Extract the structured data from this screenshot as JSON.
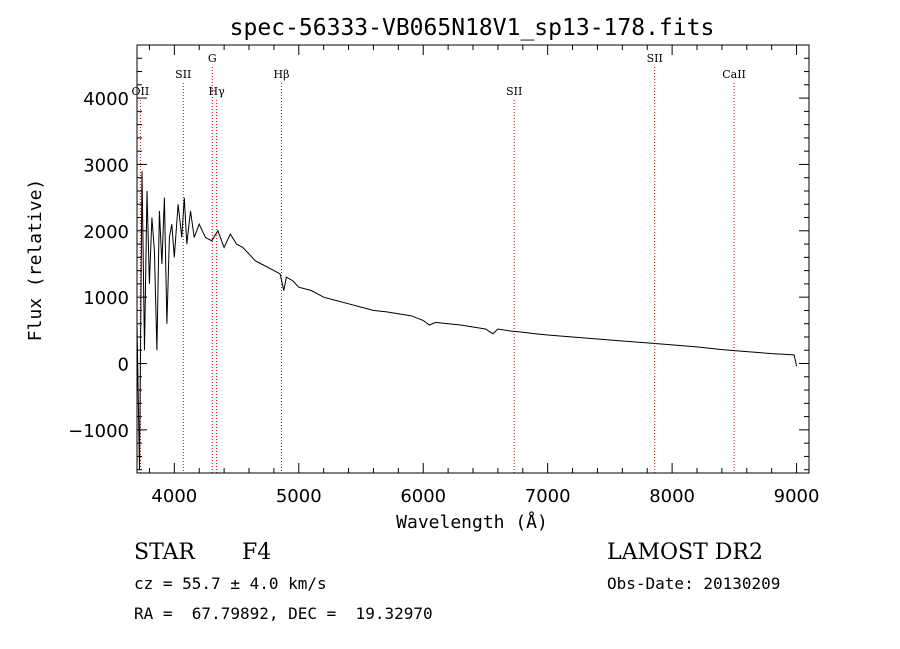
{
  "chart_data": {
    "type": "line",
    "title": "spec-56333-VB065N18V1_sp13-178.fits",
    "xlabel": "Wavelength (Å)",
    "ylabel": "Flux (relative)",
    "xlim": [
      3700,
      9100
    ],
    "ylim": [
      -1650,
      4800
    ],
    "xticks": [
      4000,
      5000,
      6000,
      7000,
      8000,
      9000
    ],
    "xtick_labels": [
      "4000",
      "5000",
      "6000",
      "7000",
      "8000",
      "9000"
    ],
    "yticks": [
      -1000,
      0,
      1000,
      2000,
      3000,
      4000
    ],
    "ytick_labels": [
      "−1000",
      "0",
      "1000",
      "2000",
      "3000",
      "4000"
    ],
    "grid": false,
    "line_color": "#000000",
    "marker_color": "#cc0000",
    "series": [
      {
        "x": [
          3700,
          3720,
          3740,
          3760,
          3780,
          3800,
          3820,
          3840,
          3860,
          3880,
          3900,
          3920,
          3940,
          3960,
          3980,
          4000,
          4030,
          4060,
          4080,
          4100,
          4130,
          4160,
          4200,
          4250,
          4300,
          4350,
          4400,
          4450,
          4500,
          4550,
          4600,
          4650,
          4700,
          4750,
          4800,
          4850,
          4880,
          4900,
          4950,
          5000,
          5100,
          5200,
          5300,
          5400,
          5500,
          5600,
          5700,
          5800,
          5900,
          6000,
          6050,
          6100,
          6200,
          6300,
          6400,
          6500,
          6560,
          6600,
          6700,
          6800,
          6900,
          7000,
          7200,
          7400,
          7600,
          7800,
          8000,
          8200,
          8400,
          8600,
          8800,
          8980,
          9000
        ],
        "y": [
          600,
          -1600,
          2900,
          200,
          2600,
          1200,
          2200,
          1700,
          200,
          2300,
          1500,
          2500,
          600,
          1900,
          2100,
          1600,
          2400,
          1900,
          2500,
          1800,
          2300,
          1900,
          2100,
          1900,
          1850,
          2000,
          1750,
          1950,
          1800,
          1750,
          1650,
          1550,
          1500,
          1450,
          1400,
          1350,
          1100,
          1300,
          1250,
          1150,
          1100,
          1000,
          950,
          900,
          850,
          800,
          780,
          750,
          720,
          650,
          580,
          620,
          600,
          580,
          550,
          520,
          450,
          520,
          490,
          470,
          450,
          430,
          400,
          370,
          340,
          310,
          280,
          250,
          210,
          180,
          150,
          130,
          -40
        ]
      }
    ],
    "line_markers": [
      {
        "label": "OII",
        "x": 3727,
        "tier": 2
      },
      {
        "label": "SII",
        "x": 4072,
        "tier": 1
      },
      {
        "label": "G",
        "x": 4305,
        "tier": 0
      },
      {
        "label": "Hγ",
        "x": 4340,
        "tier": 2
      },
      {
        "label": "Hβ",
        "x": 4861,
        "tier": 1
      },
      {
        "label": "SII",
        "x": 6731,
        "tier": 2
      },
      {
        "label": "SII",
        "x": 7860,
        "tier": 0
      },
      {
        "label": "CaII",
        "x": 8498,
        "tier": 1
      }
    ]
  },
  "info": {
    "object_type": "STAR",
    "subclass": "F4",
    "survey": "LAMOST DR2",
    "cz_text": "cz = 55.7 ± 4.0 km/s",
    "obs_date_text": "Obs-Date: 20130209",
    "coords_text": "RA =  67.79892, DEC =  19.32970"
  }
}
